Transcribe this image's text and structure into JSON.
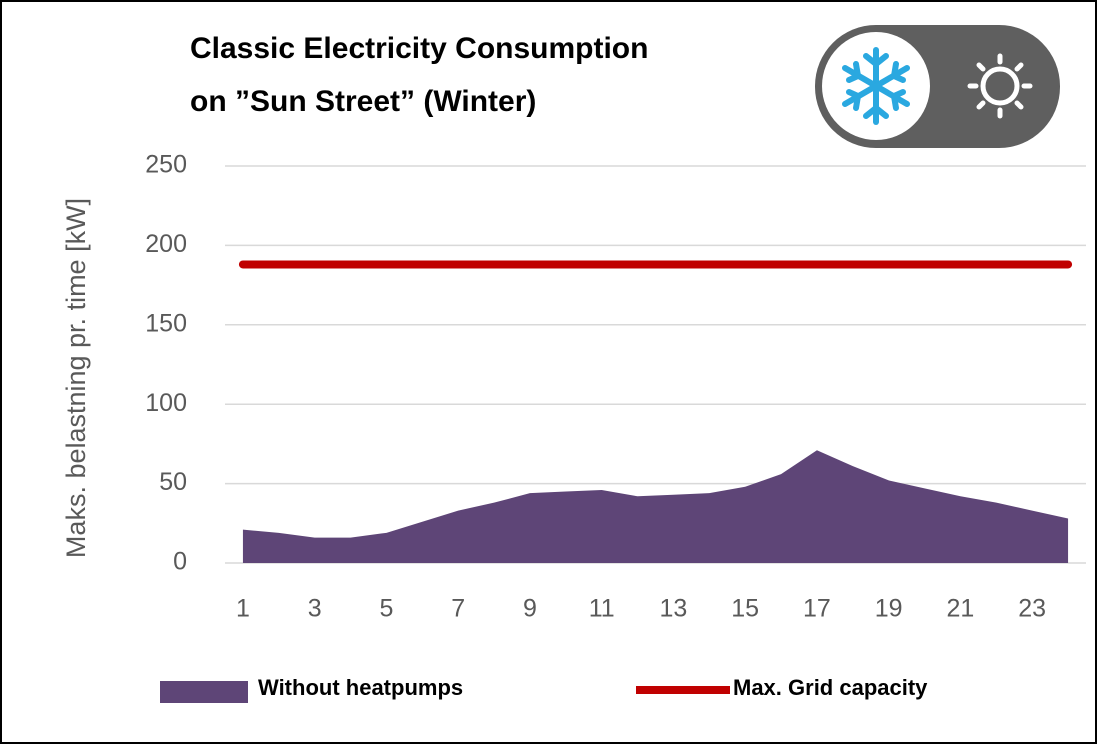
{
  "chart_data": {
    "type": "area",
    "title": [
      "Classic Electricity Consumption",
      "on ”Sun Street” (Winter)"
    ],
    "y_label": "Maks. belastning pr. time [kW]",
    "categories": [
      1,
      null,
      3,
      null,
      5,
      null,
      7,
      null,
      9,
      null,
      11,
      null,
      13,
      null,
      15,
      null,
      17,
      null,
      19,
      null,
      21,
      null,
      23,
      null
    ],
    "series": [
      {
        "name": "Without heatpumps",
        "color": "#5e4577",
        "kind": "area",
        "values": [
          21,
          19,
          16,
          16,
          19,
          26,
          33,
          38,
          44,
          45,
          46,
          42,
          43,
          44,
          48,
          56,
          71,
          61,
          52,
          47,
          42,
          38,
          33,
          28
        ]
      },
      {
        "name": "Max. Grid capacity",
        "color": "#c00000",
        "kind": "line",
        "values": [
          188,
          188,
          188,
          188,
          188,
          188,
          188,
          188,
          188,
          188,
          188,
          188,
          188,
          188,
          188,
          188,
          188,
          188,
          188,
          188,
          188,
          188,
          188,
          188
        ]
      }
    ],
    "ylim": [
      0,
      250
    ],
    "yticks": [
      0,
      50,
      100,
      150,
      200,
      250
    ],
    "grid": true
  }
}
